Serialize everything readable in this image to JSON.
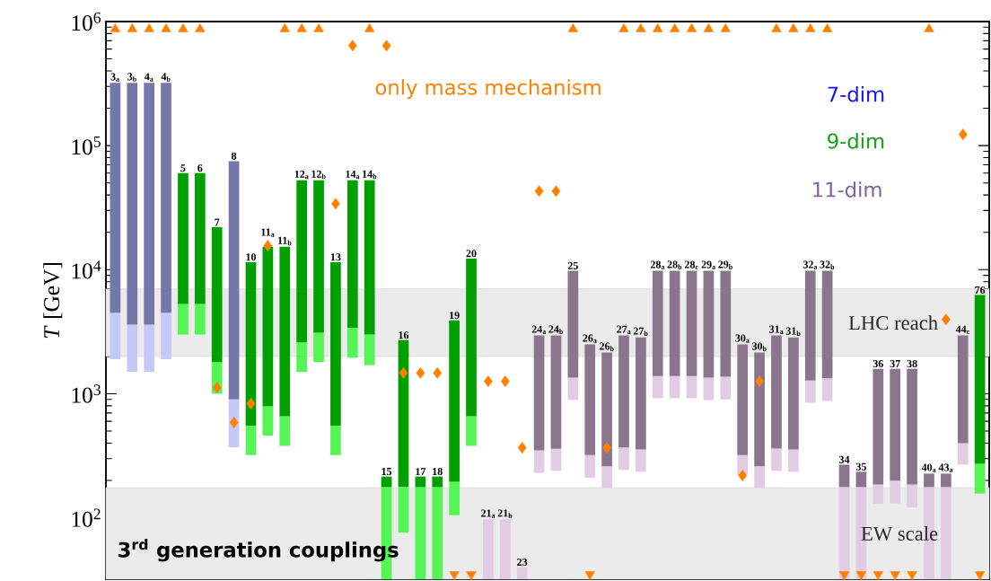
{
  "chart_data": {
    "type": "bar",
    "ylabel": "*T* [GeV]",
    "log": true,
    "ylim": [
      32,
      1000000
    ],
    "yticks": [
      {
        "value": 100,
        "label": "10$^{2}$"
      },
      {
        "value": 1000,
        "label": "10$^{3}$"
      },
      {
        "value": 10000,
        "label": "10$^{4}$"
      },
      {
        "value": 100000,
        "label": "10$^{5}$"
      },
      {
        "value": 1000000,
        "label": "10$^{6}$"
      }
    ],
    "categories": [
      "3$_{a}$",
      "3$_{b}$",
      "4$_{a}$",
      "4$_{b}$",
      "5",
      "6",
      "7",
      "8",
      "10",
      "11$_{a}$",
      "11$_{b}$",
      "12$_{a}$",
      "12$_{b}$",
      "13",
      "14$_{a}$",
      "14$_{b}$",
      "15",
      "16",
      "17",
      "18",
      "19",
      "20",
      "21$_{a}$",
      "21$_{b}$",
      "23",
      "24$_{a}$",
      "24$_{b}$",
      "25",
      "26$_{a}$",
      "26$_{b}$",
      "27$_{a}$",
      "27$_{b}$",
      "28$_{a}$",
      "28$_{b}$",
      "28$_{c}$",
      "29$_{a}$",
      "29$_{b}$",
      "30$_{a}$",
      "30$_{b}$",
      "31$_{a}$",
      "31$_{b}$",
      "32$_{a}$",
      "32$_{b}$",
      "34",
      "35",
      "36",
      "37",
      "38",
      "40$_{a}$",
      "43$_{a}$",
      "44$_{c}$",
      "76"
    ],
    "series": [
      {
        "base": [
          1900,
          1500,
          1500,
          1900,
          3000,
          3000,
          1000,
          370,
          320,
          460,
          380,
          1500,
          1800,
          320,
          1950,
          1700,
          32,
          76,
          32,
          32,
          105,
          380,
          32,
          32,
          32,
          230,
          240,
          890,
          210,
          174,
          243,
          235,
          920,
          920,
          920,
          890,
          900,
          219,
          174,
          239,
          235,
          846,
          875,
          32,
          32,
          129,
          131,
          121,
          32,
          32,
          268,
          157
        ],
        "values": [
          2600,
          2100,
          2100,
          2600,
          2300,
          2300,
          800,
          530,
          230,
          330,
          280,
          1100,
          1300,
          230,
          1450,
          1300,
          145,
          101,
          145,
          145,
          90,
          280,
          65,
          65,
          8,
          120,
          120,
          460,
          110,
          86,
          127,
          121,
          470,
          470,
          470,
          460,
          470,
          101,
          86,
          123,
          121,
          434,
          455,
          145,
          145,
          57,
          68,
          65,
          145,
          145,
          132,
          115
        ],
        "colors": [
          "#c8c8f8",
          "#c8c8f8",
          "#c8c8f8",
          "#c8c8f8",
          "#55f555",
          "#55f555",
          "#55f555",
          "#c8c8f8",
          "#55f555",
          "#55f555",
          "#55f555",
          "#55f555",
          "#55f555",
          "#55f555",
          "#55f555",
          "#55f555",
          "#55f555",
          "#55f555",
          "#55f555",
          "#55f555",
          "#55f555",
          "#55f555",
          "#e2cbe3",
          "#e2cbe3",
          "#e2cbe3",
          "#e2cbe3",
          "#e2cbe3",
          "#e2cbe3",
          "#e2cbe3",
          "#e2cbe3",
          "#e2cbe3",
          "#e2cbe3",
          "#e2cbe3",
          "#e2cbe3",
          "#e2cbe3",
          "#e2cbe3",
          "#e2cbe3",
          "#e2cbe3",
          "#e2cbe3",
          "#e2cbe3",
          "#e2cbe3",
          "#e2cbe3",
          "#e2cbe3",
          "#e2cbe3",
          "#e2cbe3",
          "#e2cbe3",
          "#e2cbe3",
          "#e2cbe3",
          "#e2cbe3",
          "#e2cbe3",
          "#e2cbe3",
          "#55f555"
        ]
      },
      {
        "base": [
          4500,
          3600,
          3600,
          4500,
          5300,
          5300,
          1800,
          900,
          550,
          790,
          660,
          2600,
          3100,
          550,
          3400,
          3000,
          177,
          177,
          177,
          177,
          195,
          660,
          null,
          null,
          null,
          350,
          360,
          1350,
          320,
          260,
          370,
          356,
          1390,
          1390,
          1390,
          1350,
          1370,
          320,
          260,
          362,
          356,
          1280,
          1330,
          177,
          177,
          186,
          199,
          186,
          177,
          177,
          400,
          272
        ],
        "values": [
          315500,
          316400,
          316400,
          315500,
          54700,
          54700,
          20200,
          74100,
          10950,
          14510,
          14640,
          49900,
          49400,
          10950,
          49100,
          49500,
          38,
          2523,
          38,
          38,
          3705,
          11640,
          null,
          null,
          null,
          2600,
          2590,
          8450,
          2180,
          1890,
          2580,
          2494,
          8410,
          8410,
          8410,
          8450,
          8430,
          2180,
          1890,
          2588,
          2494,
          8520,
          8470,
          91,
          58,
          1404,
          1391,
          1404,
          50,
          50,
          2550,
          5968
        ],
        "colors": [
          "#7477a8",
          "#7477a8",
          "#7477a8",
          "#7477a8",
          "#00a000",
          "#00a000",
          "#00a000",
          "#7477a8",
          "#00a000",
          "#00a000",
          "#00a000",
          "#00a000",
          "#00a000",
          "#00a000",
          "#00a000",
          "#00a000",
          "#00a000",
          "#00a000",
          "#00a000",
          "#00a000",
          "#00a000",
          "#00a000",
          "#8b758c",
          "#8b758c",
          "#8b758c",
          "#8b758c",
          "#8b758c",
          "#8b758c",
          "#8b758c",
          "#8b758c",
          "#8b758c",
          "#8b758c",
          "#8b758c",
          "#8b758c",
          "#8b758c",
          "#8b758c",
          "#8b758c",
          "#8b758c",
          "#8b758c",
          "#8b758c",
          "#8b758c",
          "#8b758c",
          "#8b758c",
          "#8b758c",
          "#8b758c",
          "#8b758c",
          "#8b758c",
          "#8b758c",
          "#8b758c",
          "#8b758c",
          "#8b758c",
          "#00a000"
        ]
      },
      {
        "type": "scatter",
        "name": "only mass mechanism",
        "color": "#ff8000",
        "marker": "diamond",
        "values": [
          null,
          null,
          null,
          null,
          null,
          null,
          1120,
          587,
          832,
          15600,
          null,
          null,
          null,
          34000,
          640000,
          null,
          640000,
          1470,
          1470,
          1470,
          null,
          null,
          1260,
          1260,
          367,
          43000,
          43000,
          null,
          null,
          367,
          null,
          null,
          null,
          null,
          null,
          null,
          null,
          219,
          1260,
          null,
          null,
          null,
          null,
          null,
          null,
          null,
          null,
          null,
          null,
          3970,
          123000,
          null
        ]
      },
      {
        "type": "scatter",
        "color": "#ff8000",
        "marker": "triangle",
        "values": [
          870000,
          870000,
          870000,
          870000,
          870000,
          870000,
          null,
          null,
          null,
          null,
          870000,
          870000,
          870000,
          null,
          null,
          870000,
          null,
          null,
          null,
          null,
          null,
          null,
          null,
          null,
          null,
          null,
          null,
          870000,
          null,
          null,
          870000,
          870000,
          870000,
          870000,
          870000,
          870000,
          870000,
          null,
          null,
          870000,
          870000,
          870000,
          870000,
          null,
          null,
          null,
          null,
          null,
          870000,
          null,
          null,
          null
        ]
      },
      {
        "type": "scatter",
        "color": "#ff8000",
        "marker": "triangle-down",
        "values": [
          null,
          null,
          null,
          null,
          null,
          null,
          null,
          null,
          null,
          null,
          null,
          null,
          null,
          null,
          null,
          null,
          null,
          null,
          null,
          null,
          35,
          35,
          null,
          null,
          null,
          null,
          null,
          null,
          35,
          null,
          null,
          null,
          null,
          null,
          null,
          null,
          null,
          null,
          null,
          null,
          null,
          null,
          null,
          35,
          35,
          35,
          35,
          35,
          null,
          null,
          null,
          35
        ]
      }
    ],
    "bands": [
      {
        "axis": "y",
        "from": 2000,
        "to": 7000,
        "label": "LHC reach",
        "color": "#ebebeb"
      },
      {
        "axis": "y",
        "from": 32,
        "to": 175,
        "label": "EW scale",
        "color": "#ebebeb"
      }
    ],
    "annotations": [
      "7-dim",
      "9-dim",
      "11-dim",
      "3$^{rd}$ generation couplings"
    ]
  }
}
